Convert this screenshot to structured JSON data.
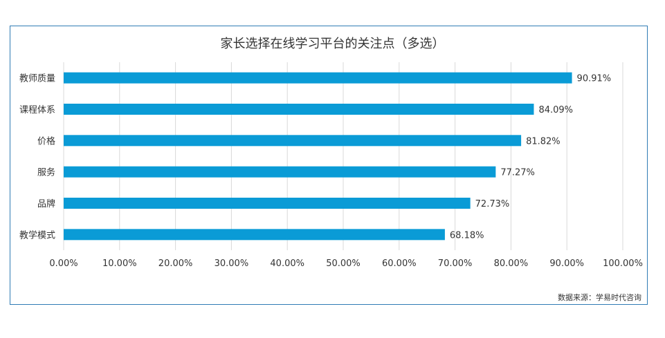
{
  "chart_data": {
    "type": "bar",
    "orientation": "horizontal",
    "title": "家长选择在线学习平台的关注点（多选）",
    "categories": [
      "教师质量",
      "课程体系",
      "价格",
      "服务",
      "品牌",
      "教学模式"
    ],
    "values": [
      90.91,
      84.09,
      81.82,
      77.27,
      72.73,
      68.18
    ],
    "data_labels": [
      "90.91%",
      "84.09%",
      "81.82%",
      "77.27%",
      "72.73%",
      "68.18%"
    ],
    "xlim": [
      0,
      100
    ],
    "x_ticks": [
      "0.00%",
      "10.00%",
      "20.00%",
      "30.00%",
      "40.00%",
      "50.00%",
      "60.00%",
      "70.00%",
      "80.00%",
      "90.00%",
      "100.00%"
    ],
    "grid": "vertical",
    "bar_color": "#0a9bd6",
    "source": "数据来源：学易时代咨询"
  }
}
